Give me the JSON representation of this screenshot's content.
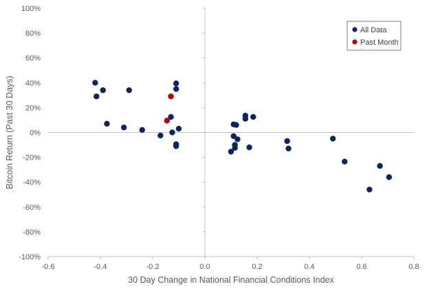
{
  "chart_data": {
    "type": "scatter",
    "title": "",
    "xlabel": "30 Day Change in National Financial Conditions Index",
    "ylabel": "Bitcoin Return (Past 30 Days)",
    "xlim": [
      -0.6,
      0.8
    ],
    "ylim": [
      -100,
      100
    ],
    "x_ticks": [
      -0.6,
      -0.4,
      -0.2,
      0.0,
      0.2,
      0.4,
      0.6,
      0.8
    ],
    "x_tick_labels": [
      "-0.6",
      "-0.4",
      "-0.2",
      "0.0",
      "0.2",
      "0.4",
      "0.6",
      "0.8"
    ],
    "y_ticks": [
      -100,
      -80,
      -60,
      -40,
      -20,
      0,
      20,
      40,
      60,
      80,
      100
    ],
    "y_tick_labels": [
      "-100%",
      "-80%",
      "-60%",
      "-40%",
      "-20%",
      "0%",
      "20%",
      "40%",
      "60%",
      "80%",
      "100%"
    ],
    "grid": false,
    "legend_position": "top-right",
    "series": [
      {
        "name": "All Data",
        "color": "#0c2461",
        "points": [
          [
            -0.42,
            40
          ],
          [
            -0.415,
            29
          ],
          [
            -0.39,
            34
          ],
          [
            -0.375,
            7
          ],
          [
            -0.31,
            4
          ],
          [
            -0.29,
            34
          ],
          [
            -0.24,
            2
          ],
          [
            -0.17,
            -2.5
          ],
          [
            -0.13,
            12.5
          ],
          [
            -0.125,
            0
          ],
          [
            -0.11,
            39.5
          ],
          [
            -0.11,
            35
          ],
          [
            -0.11,
            -9.5
          ],
          [
            -0.11,
            -11
          ],
          [
            -0.1,
            3
          ],
          [
            0.1,
            -15.5
          ],
          [
            0.11,
            6.5
          ],
          [
            0.11,
            -3
          ],
          [
            0.115,
            -10
          ],
          [
            0.115,
            -12.5
          ],
          [
            0.12,
            6
          ],
          [
            0.125,
            -5.5
          ],
          [
            0.155,
            13.5
          ],
          [
            0.155,
            11
          ],
          [
            0.17,
            -12
          ],
          [
            0.185,
            12.5
          ],
          [
            0.315,
            -7
          ],
          [
            0.32,
            -13
          ],
          [
            0.49,
            -5
          ],
          [
            0.535,
            -23.5
          ],
          [
            0.63,
            -46
          ],
          [
            0.67,
            -27
          ],
          [
            0.705,
            -36
          ]
        ]
      },
      {
        "name": "Past Month",
        "color": "#c00000",
        "points": [
          [
            -0.13,
            29
          ],
          [
            -0.145,
            9.5
          ]
        ]
      }
    ]
  }
}
